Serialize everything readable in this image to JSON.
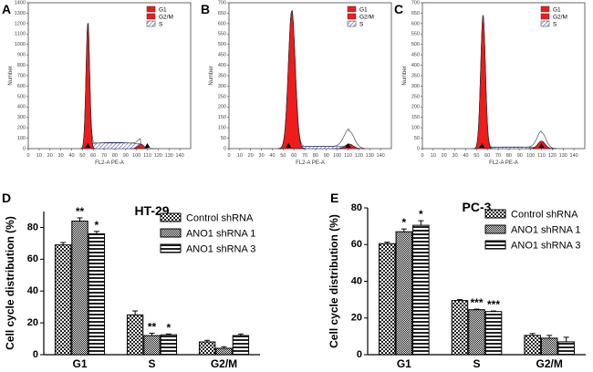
{
  "figure": {
    "panel_letters": [
      "A",
      "B",
      "C",
      "D",
      "E"
    ]
  },
  "chart_data": [
    {
      "panel": "A",
      "type": "area",
      "title": "",
      "xlabel": "FL2-A PE-A",
      "ylabel": "Number",
      "xlim": [
        0,
        150
      ],
      "ylim": [
        0,
        1400
      ],
      "xticks": [
        "0",
        "10",
        "20",
        "30",
        "40",
        "50",
        "60",
        "70",
        "80",
        "90",
        "100",
        "110",
        "120",
        "130",
        "140"
      ],
      "yticks": [
        "0",
        "100",
        "200",
        "300",
        "400",
        "500",
        "600",
        "700",
        "800",
        "900",
        "1000",
        "1100",
        "1200",
        "1300",
        "1400"
      ],
      "legend": [
        "G1",
        "G2/M",
        "S"
      ],
      "g1": {
        "center": 55,
        "sigma": 1.7,
        "peak": 1200
      },
      "g2m": {
        "center": 104,
        "sigma": 2.6,
        "peak": 42
      },
      "s_phase": {
        "from": 55,
        "to": 104,
        "level": 60
      },
      "markers": [
        55,
        110
      ]
    },
    {
      "panel": "B",
      "type": "area",
      "title": "",
      "xlabel": "FL2-A PE-A",
      "ylabel": "Number",
      "xlim": [
        0,
        150
      ],
      "ylim": [
        0,
        700
      ],
      "xticks": [
        "0",
        "10",
        "20",
        "30",
        "40",
        "50",
        "60",
        "70",
        "80",
        "90",
        "100",
        "110",
        "120",
        "130",
        "140"
      ],
      "yticks": [
        "0",
        "50",
        "100",
        "150",
        "200",
        "250",
        "300",
        "350",
        "400",
        "450",
        "500",
        "550",
        "600",
        "650",
        "700"
      ],
      "legend": [
        "G1",
        "G2/M",
        "S"
      ],
      "g1": {
        "center": 58,
        "sigma": 3.2,
        "peak": 660
      },
      "g2m": {
        "center": 111,
        "sigma": 3.8,
        "peak": 22
      },
      "s_phase": {
        "from": 58,
        "to": 111,
        "level": 12
      },
      "envelope_extra": {
        "center": 111,
        "sigma": 5,
        "peak": 62
      },
      "markers": [
        55,
        110
      ]
    },
    {
      "panel": "C",
      "type": "area",
      "title": "",
      "xlabel": "FL2-A PE-A",
      "ylabel": "Number",
      "xlim": [
        0,
        150
      ],
      "ylim": [
        0,
        700
      ],
      "xticks": [
        "0",
        "10",
        "20",
        "30",
        "40",
        "50",
        "60",
        "70",
        "80",
        "90",
        "100",
        "110",
        "120",
        "130",
        "140"
      ],
      "yticks": [
        "0",
        "50",
        "100",
        "150",
        "200",
        "250",
        "300",
        "350",
        "400",
        "450",
        "500",
        "550",
        "600",
        "650",
        "700"
      ],
      "legend": [
        "G1",
        "G2/M",
        "S"
      ],
      "g1": {
        "center": 56,
        "sigma": 2.2,
        "peak": 640
      },
      "g2m": {
        "center": 110,
        "sigma": 3.4,
        "peak": 36
      },
      "s_phase": {
        "from": 56,
        "to": 110,
        "level": 8
      },
      "envelope_extra": {
        "center": 110,
        "sigma": 4.5,
        "peak": 42
      },
      "markers": [
        55,
        110
      ]
    },
    {
      "panel": "D",
      "type": "bar",
      "title": "HT-29",
      "xlabel": "",
      "ylabel": "Cell cycle distribution (%)",
      "ylim": [
        0,
        90
      ],
      "yticks": [
        "0",
        "20",
        "40",
        "60",
        "80"
      ],
      "categories": [
        "G1",
        "S",
        "G2/M"
      ],
      "series": [
        {
          "name": "Control shRNA",
          "values": [
            69,
            25,
            8
          ],
          "errors": [
            1.5,
            2.5,
            1.0
          ]
        },
        {
          "name": "ANO1 shRNA 1",
          "values": [
            84,
            12,
            4
          ],
          "errors": [
            2.0,
            1.5,
            1.0
          ]
        },
        {
          "name": "ANO1 shRNA 3",
          "values": [
            76,
            12.5,
            12
          ],
          "errors": [
            1.5,
            0.5,
            1.0
          ]
        }
      ],
      "annotations": [
        [
          "",
          "**",
          "*"
        ],
        [
          "",
          "**",
          "*"
        ],
        [
          "",
          "",
          ""
        ]
      ]
    },
    {
      "panel": "E",
      "type": "bar",
      "title": "PC-3",
      "xlabel": "",
      "ylabel": "Cell cycle distribution (%)",
      "ylim": [
        0,
        80
      ],
      "yticks": [
        "0",
        "20",
        "40",
        "60",
        "80"
      ],
      "categories": [
        "G1",
        "S",
        "G2/M"
      ],
      "series": [
        {
          "name": "Control shRNA",
          "values": [
            60.5,
            29.5,
            10.5
          ],
          "errors": [
            0.8,
            0.5,
            1.0
          ]
        },
        {
          "name": "ANO1 shRNA 1",
          "values": [
            67,
            24.5,
            9
          ],
          "errors": [
            1.5,
            0.3,
            1.5
          ]
        },
        {
          "name": "ANO1 shRNA 3",
          "values": [
            70.5,
            23.5,
            7
          ],
          "errors": [
            2.5,
            0.3,
            2.5
          ]
        }
      ],
      "annotations": [
        [
          "",
          "*",
          "*"
        ],
        [
          "",
          "***",
          "***"
        ],
        [
          "",
          "",
          ""
        ]
      ]
    }
  ]
}
